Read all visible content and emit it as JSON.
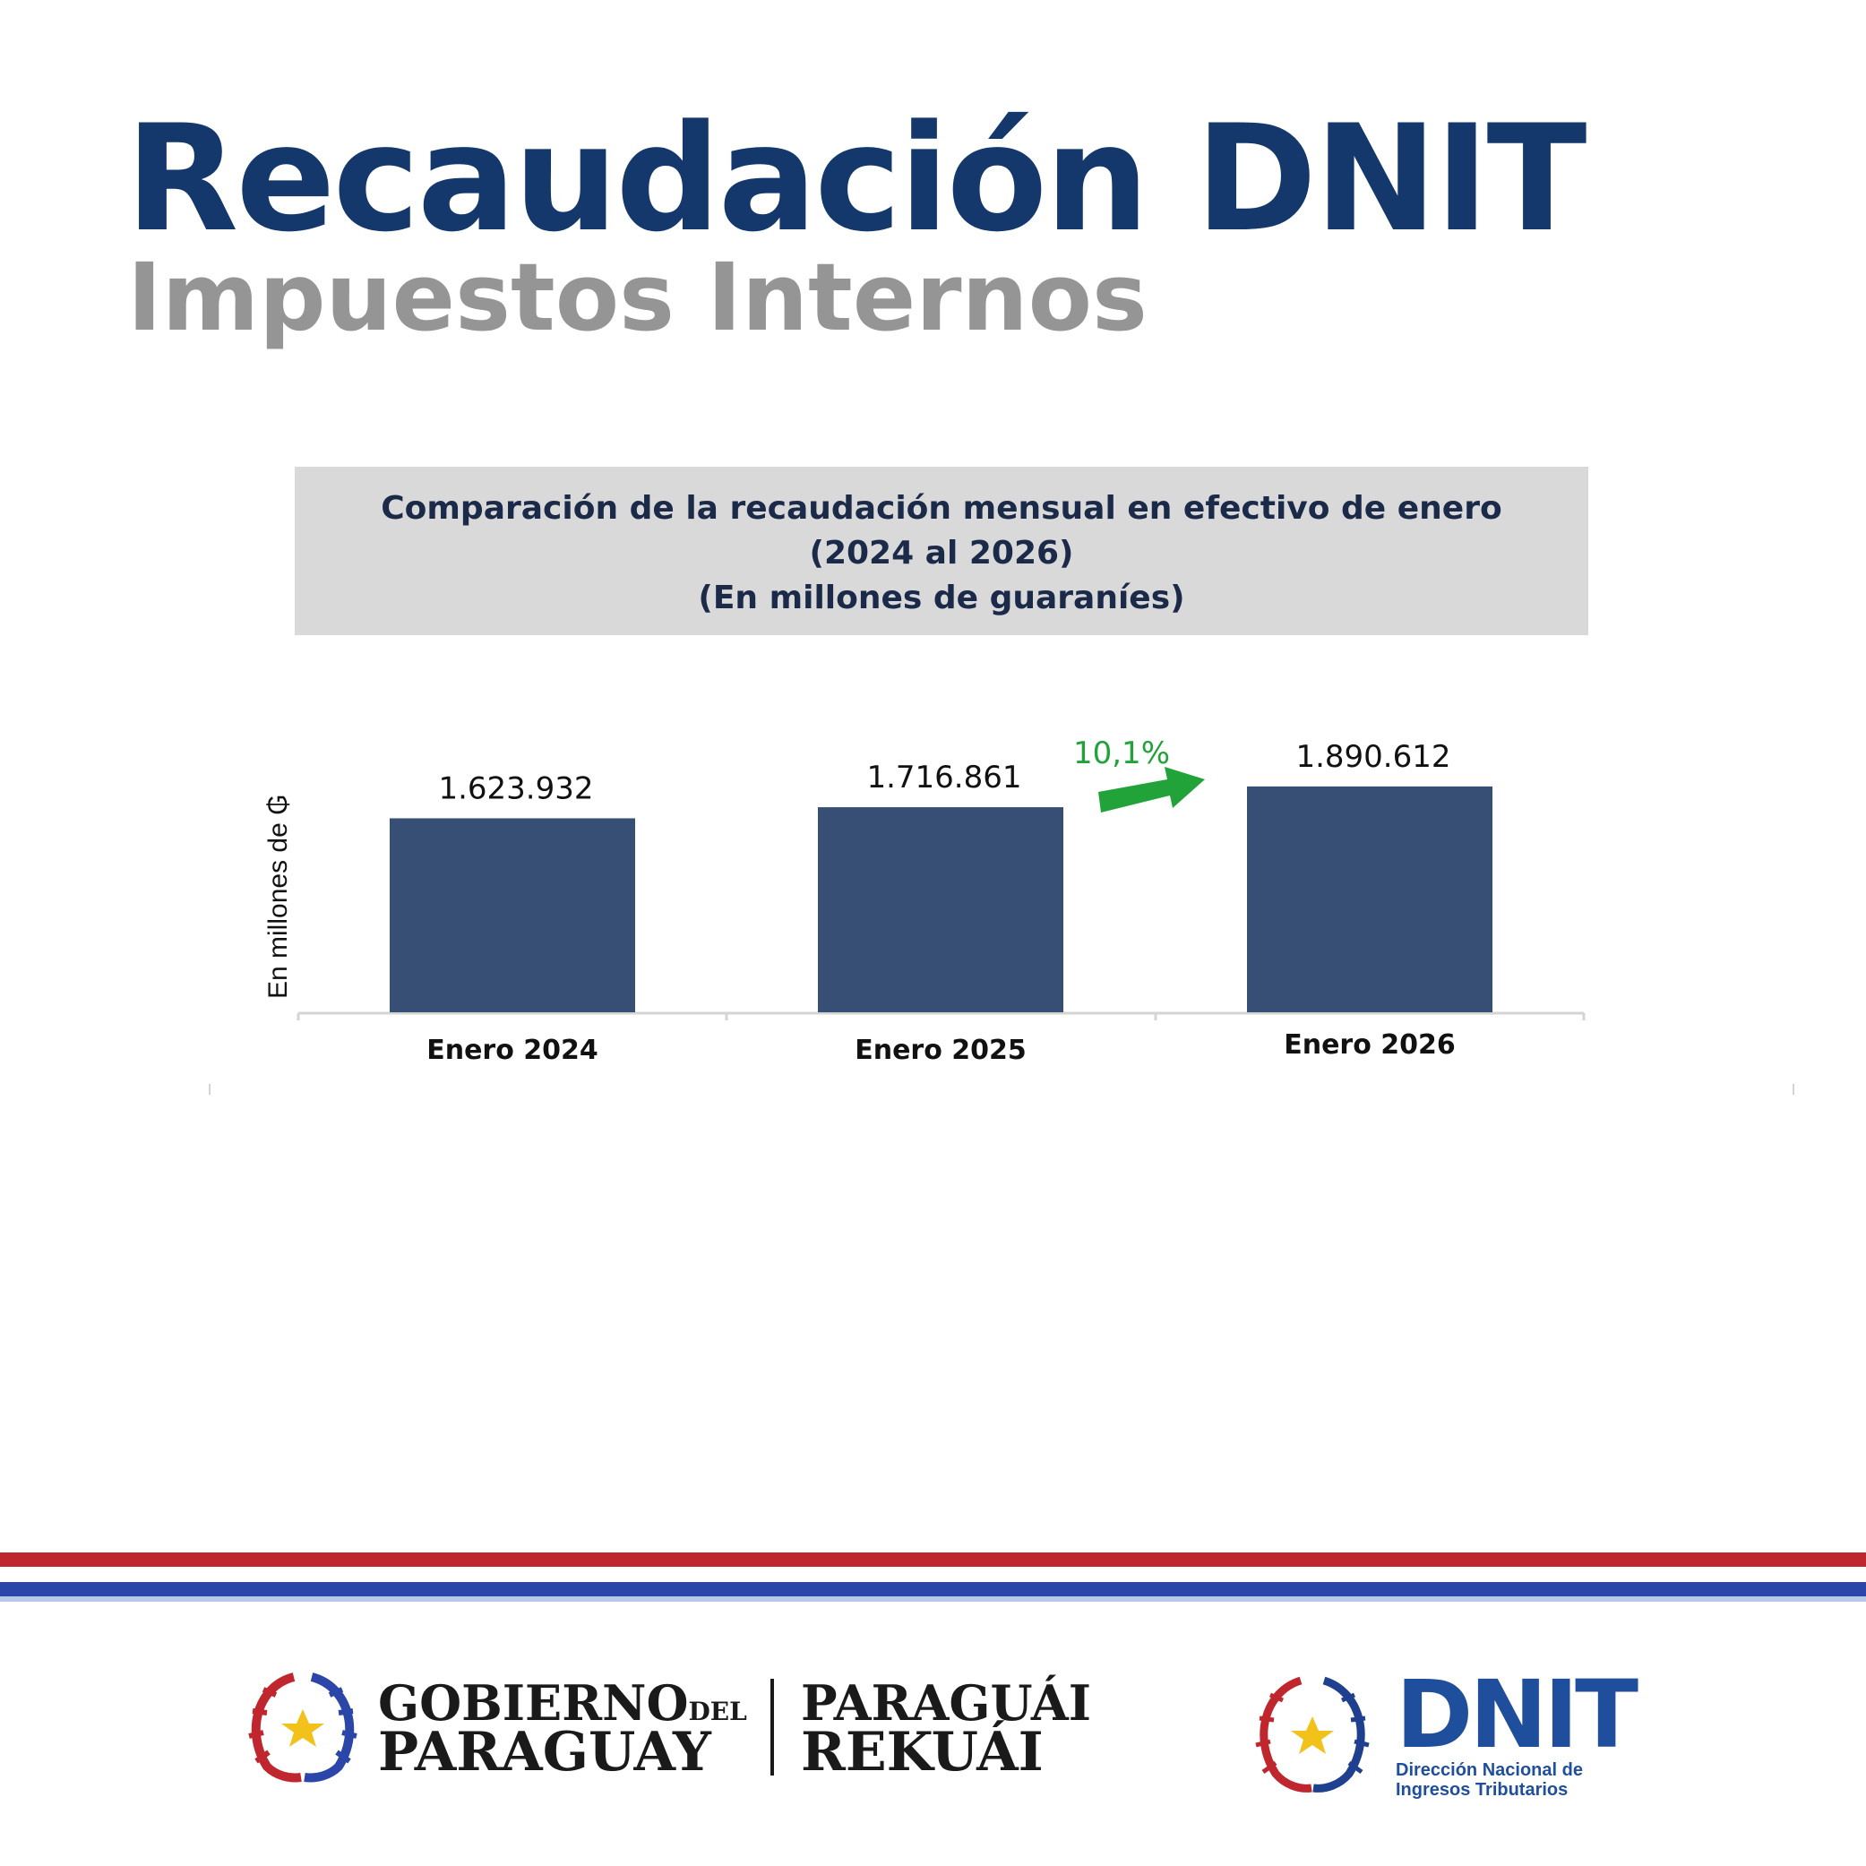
{
  "header": {
    "title": "Recaudación DNIT",
    "subtitle": "Impuestos Internos"
  },
  "chart_data": {
    "type": "bar",
    "title_lines": [
      "Comparación de la recaudación mensual en efectivo de enero",
      "(2024 al 2026)",
      "(En millones de guaraníes)"
    ],
    "ylabel": "En millones de ₲",
    "categories": [
      "Enero 2024",
      "Enero 2025",
      "Enero 2026"
    ],
    "values": [
      1623932,
      1716861,
      1890612
    ],
    "value_labels": [
      "1.623.932",
      "1.716.861",
      "1.890.612"
    ],
    "ylim": [
      0,
      2400000
    ],
    "grid": false,
    "bar_color": "#374f75",
    "annotation": {
      "text": "10,1%",
      "color": "#21a33a"
    }
  },
  "footer": {
    "flag_colors": [
      "#c0262d",
      "#ffffff",
      "#2b46a8"
    ],
    "gov_logo": {
      "line1": "GOBIERNO",
      "line1_small": "DEL",
      "line2": "PARAGUAY",
      "line3": "PARAGUÁI",
      "line4": "REKUÁI"
    },
    "dnit_logo": {
      "name": "DNIT",
      "line1": "Dirección Nacional de",
      "line2": "Ingresos Tributarios"
    }
  }
}
